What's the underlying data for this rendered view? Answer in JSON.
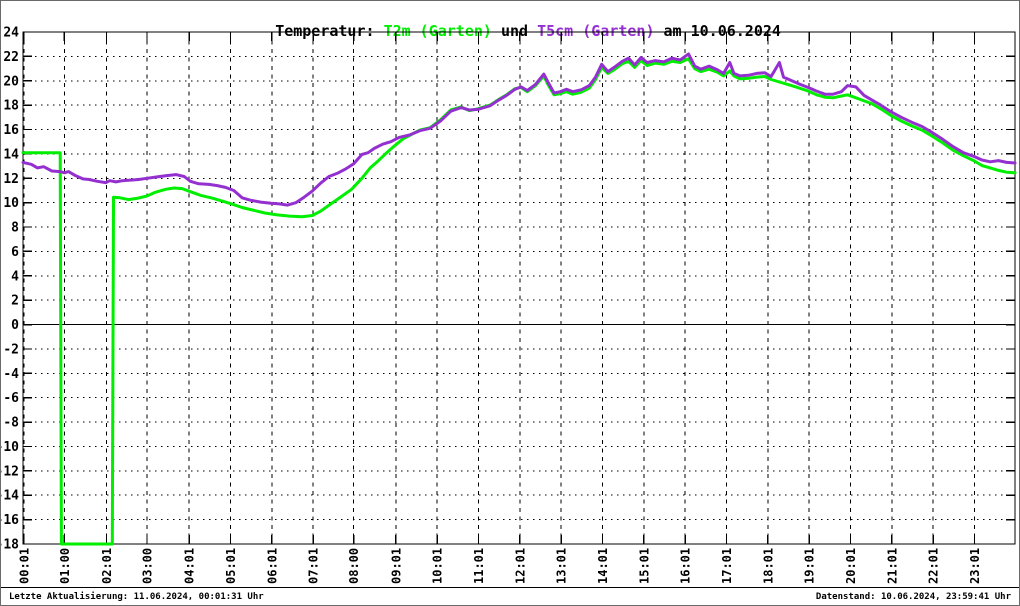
{
  "title": {
    "prefix": "Temperatur: ",
    "series1_label": "T2m (Garten)",
    "conjunction": " und ",
    "series2_label": "T5cm (Garten)",
    "suffix": " am 10.06.2024"
  },
  "footer": {
    "last_update": "Letzte Aktualisierung: 11.06.2024, 00:01:31 Uhr",
    "data_state": "Datenstand: 10.06.2024, 23:59:41 Uhr"
  },
  "chart_data": {
    "type": "line",
    "title": "Temperatur: T2m (Garten) und T5cm (Garten) am 10.06.2024",
    "xlabel": "",
    "ylabel": "",
    "x_unit": "hours_of_day",
    "ylim": [
      -18,
      24
    ],
    "grid": "dotted",
    "zero_line": true,
    "legend_position": "none",
    "y_ticks": [
      24,
      22,
      20,
      18,
      16,
      14,
      12,
      10,
      8,
      6,
      4,
      2,
      0,
      -2,
      -4,
      -6,
      -8,
      -10,
      -12,
      -14,
      -16,
      -18
    ],
    "x_ticks": [
      {
        "t": 0.02,
        "label": "00:01"
      },
      {
        "t": 1.0,
        "label": "01:00"
      },
      {
        "t": 2.02,
        "label": "02:01"
      },
      {
        "t": 3.0,
        "label": "03:00"
      },
      {
        "t": 4.02,
        "label": "04:01"
      },
      {
        "t": 5.02,
        "label": "05:01"
      },
      {
        "t": 6.02,
        "label": "06:01"
      },
      {
        "t": 7.02,
        "label": "07:01"
      },
      {
        "t": 8.0,
        "label": "08:00"
      },
      {
        "t": 9.02,
        "label": "09:01"
      },
      {
        "t": 10.02,
        "label": "10:01"
      },
      {
        "t": 11.02,
        "label": "11:01"
      },
      {
        "t": 12.02,
        "label": "12:01"
      },
      {
        "t": 13.02,
        "label": "13:01"
      },
      {
        "t": 14.02,
        "label": "14:01"
      },
      {
        "t": 15.02,
        "label": "15:01"
      },
      {
        "t": 16.02,
        "label": "16:01"
      },
      {
        "t": 17.02,
        "label": "17:01"
      },
      {
        "t": 18.02,
        "label": "18:01"
      },
      {
        "t": 19.02,
        "label": "19:01"
      },
      {
        "t": 20.02,
        "label": "20:01"
      },
      {
        "t": 21.02,
        "label": "21:01"
      },
      {
        "t": 22.02,
        "label": "22:01"
      },
      {
        "t": 23.02,
        "label": "23:01"
      }
    ],
    "series": [
      {
        "name": "T2m (Garten)",
        "color": "#00ee00",
        "points": [
          [
            0,
            14.1
          ],
          [
            0.9,
            14.1
          ],
          [
            0.93,
            -18
          ],
          [
            2.16,
            -18
          ],
          [
            2.19,
            10.45
          ],
          [
            2.35,
            10.4
          ],
          [
            2.55,
            10.25
          ],
          [
            2.75,
            10.35
          ],
          [
            3.0,
            10.55
          ],
          [
            3.2,
            10.85
          ],
          [
            3.45,
            11.1
          ],
          [
            3.65,
            11.2
          ],
          [
            3.85,
            11.15
          ],
          [
            4.05,
            10.9
          ],
          [
            4.3,
            10.6
          ],
          [
            4.55,
            10.4
          ],
          [
            4.8,
            10.15
          ],
          [
            5.05,
            9.9
          ],
          [
            5.3,
            9.6
          ],
          [
            5.55,
            9.4
          ],
          [
            5.85,
            9.15
          ],
          [
            6.15,
            9.0
          ],
          [
            6.45,
            8.9
          ],
          [
            6.75,
            8.85
          ],
          [
            7.0,
            8.95
          ],
          [
            7.2,
            9.3
          ],
          [
            7.45,
            9.9
          ],
          [
            7.7,
            10.5
          ],
          [
            7.95,
            11.1
          ],
          [
            8.2,
            12.0
          ],
          [
            8.4,
            12.85
          ],
          [
            8.6,
            13.45
          ],
          [
            8.8,
            14.1
          ],
          [
            9.0,
            14.7
          ],
          [
            9.2,
            15.25
          ],
          [
            9.4,
            15.6
          ],
          [
            9.6,
            15.95
          ],
          [
            9.85,
            16.15
          ],
          [
            10.1,
            16.8
          ],
          [
            10.35,
            17.6
          ],
          [
            10.6,
            17.85
          ],
          [
            10.8,
            17.55
          ],
          [
            11.0,
            17.7
          ],
          [
            11.15,
            17.85
          ],
          [
            11.3,
            18.0
          ],
          [
            11.5,
            18.45
          ],
          [
            11.7,
            18.85
          ],
          [
            11.9,
            19.35
          ],
          [
            12.05,
            19.45
          ],
          [
            12.2,
            19.1
          ],
          [
            12.4,
            19.6
          ],
          [
            12.6,
            20.4
          ],
          [
            12.7,
            19.7
          ],
          [
            12.85,
            18.85
          ],
          [
            13.0,
            18.95
          ],
          [
            13.15,
            19.1
          ],
          [
            13.3,
            18.9
          ],
          [
            13.5,
            19.05
          ],
          [
            13.7,
            19.4
          ],
          [
            13.85,
            20.1
          ],
          [
            14.0,
            21.1
          ],
          [
            14.15,
            20.6
          ],
          [
            14.3,
            20.9
          ],
          [
            14.5,
            21.4
          ],
          [
            14.65,
            21.6
          ],
          [
            14.8,
            21.1
          ],
          [
            14.95,
            21.65
          ],
          [
            15.1,
            21.25
          ],
          [
            15.3,
            21.45
          ],
          [
            15.5,
            21.35
          ],
          [
            15.7,
            21.6
          ],
          [
            15.9,
            21.5
          ],
          [
            16.1,
            21.8
          ],
          [
            16.25,
            21.0
          ],
          [
            16.4,
            20.75
          ],
          [
            16.6,
            20.95
          ],
          [
            16.8,
            20.7
          ],
          [
            16.95,
            20.4
          ],
          [
            17.1,
            20.8
          ],
          [
            17.2,
            20.4
          ],
          [
            17.35,
            20.15
          ],
          [
            17.55,
            20.2
          ],
          [
            17.75,
            20.3
          ],
          [
            17.95,
            20.35
          ],
          [
            18.1,
            20.1
          ],
          [
            18.3,
            19.9
          ],
          [
            18.5,
            19.7
          ],
          [
            18.7,
            19.5
          ],
          [
            19.0,
            19.15
          ],
          [
            19.2,
            18.85
          ],
          [
            19.4,
            18.65
          ],
          [
            19.6,
            18.6
          ],
          [
            19.8,
            18.75
          ],
          [
            19.95,
            18.85
          ],
          [
            20.15,
            18.6
          ],
          [
            20.35,
            18.35
          ],
          [
            20.55,
            18.1
          ],
          [
            20.75,
            17.7
          ],
          [
            21.0,
            17.15
          ],
          [
            21.25,
            16.7
          ],
          [
            21.5,
            16.3
          ],
          [
            21.75,
            15.95
          ],
          [
            22.0,
            15.45
          ],
          [
            22.25,
            14.9
          ],
          [
            22.5,
            14.3
          ],
          [
            22.75,
            13.85
          ],
          [
            23.0,
            13.45
          ],
          [
            23.2,
            13.05
          ],
          [
            23.4,
            12.85
          ],
          [
            23.6,
            12.65
          ],
          [
            23.8,
            12.5
          ],
          [
            24.0,
            12.45
          ]
        ]
      },
      {
        "name": "T5cm (Garten)",
        "color": "#9430d0",
        "points": [
          [
            0,
            13.3
          ],
          [
            0.2,
            13.15
          ],
          [
            0.35,
            12.85
          ],
          [
            0.5,
            12.95
          ],
          [
            0.7,
            12.6
          ],
          [
            0.9,
            12.55
          ],
          [
            1.0,
            12.45
          ],
          [
            1.1,
            12.55
          ],
          [
            1.25,
            12.25
          ],
          [
            1.45,
            11.95
          ],
          [
            1.6,
            11.9
          ],
          [
            1.8,
            11.75
          ],
          [
            2.0,
            11.65
          ],
          [
            2.1,
            11.8
          ],
          [
            2.25,
            11.7
          ],
          [
            2.4,
            11.8
          ],
          [
            2.6,
            11.85
          ],
          [
            2.8,
            11.9
          ],
          [
            3.0,
            12.0
          ],
          [
            3.2,
            12.1
          ],
          [
            3.45,
            12.2
          ],
          [
            3.7,
            12.3
          ],
          [
            3.9,
            12.15
          ],
          [
            4.05,
            11.75
          ],
          [
            4.25,
            11.55
          ],
          [
            4.5,
            11.5
          ],
          [
            4.7,
            11.4
          ],
          [
            4.9,
            11.25
          ],
          [
            5.1,
            11.0
          ],
          [
            5.3,
            10.4
          ],
          [
            5.5,
            10.2
          ],
          [
            5.75,
            10.05
          ],
          [
            6.0,
            9.95
          ],
          [
            6.2,
            9.9
          ],
          [
            6.4,
            9.8
          ],
          [
            6.6,
            10.0
          ],
          [
            6.8,
            10.45
          ],
          [
            7.0,
            10.95
          ],
          [
            7.2,
            11.6
          ],
          [
            7.4,
            12.15
          ],
          [
            7.6,
            12.4
          ],
          [
            7.8,
            12.75
          ],
          [
            8.0,
            13.2
          ],
          [
            8.2,
            13.95
          ],
          [
            8.35,
            14.1
          ],
          [
            8.5,
            14.45
          ],
          [
            8.7,
            14.8
          ],
          [
            8.9,
            15.0
          ],
          [
            9.1,
            15.35
          ],
          [
            9.35,
            15.55
          ],
          [
            9.6,
            15.9
          ],
          [
            9.85,
            16.1
          ],
          [
            10.1,
            16.7
          ],
          [
            10.35,
            17.5
          ],
          [
            10.6,
            17.8
          ],
          [
            10.8,
            17.6
          ],
          [
            11.0,
            17.65
          ],
          [
            11.15,
            17.8
          ],
          [
            11.3,
            17.95
          ],
          [
            11.5,
            18.4
          ],
          [
            11.7,
            18.8
          ],
          [
            11.9,
            19.3
          ],
          [
            12.05,
            19.5
          ],
          [
            12.2,
            19.2
          ],
          [
            12.4,
            19.7
          ],
          [
            12.6,
            20.55
          ],
          [
            12.7,
            19.9
          ],
          [
            12.85,
            19.0
          ],
          [
            13.0,
            19.1
          ],
          [
            13.15,
            19.3
          ],
          [
            13.3,
            19.1
          ],
          [
            13.5,
            19.25
          ],
          [
            13.7,
            19.6
          ],
          [
            13.85,
            20.3
          ],
          [
            14.0,
            21.35
          ],
          [
            14.15,
            20.75
          ],
          [
            14.3,
            21.1
          ],
          [
            14.5,
            21.6
          ],
          [
            14.65,
            21.85
          ],
          [
            14.8,
            21.3
          ],
          [
            14.95,
            21.9
          ],
          [
            15.1,
            21.5
          ],
          [
            15.3,
            21.65
          ],
          [
            15.5,
            21.55
          ],
          [
            15.7,
            21.85
          ],
          [
            15.9,
            21.7
          ],
          [
            16.1,
            22.2
          ],
          [
            16.25,
            21.2
          ],
          [
            16.4,
            20.95
          ],
          [
            16.6,
            21.2
          ],
          [
            16.8,
            20.9
          ],
          [
            16.95,
            20.6
          ],
          [
            17.1,
            21.5
          ],
          [
            17.2,
            20.6
          ],
          [
            17.35,
            20.4
          ],
          [
            17.55,
            20.45
          ],
          [
            17.75,
            20.6
          ],
          [
            17.95,
            20.65
          ],
          [
            18.1,
            20.35
          ],
          [
            18.3,
            21.5
          ],
          [
            18.4,
            20.3
          ],
          [
            18.6,
            20.0
          ],
          [
            18.8,
            19.7
          ],
          [
            19.0,
            19.45
          ],
          [
            19.2,
            19.15
          ],
          [
            19.4,
            18.9
          ],
          [
            19.6,
            18.9
          ],
          [
            19.8,
            19.1
          ],
          [
            19.95,
            19.6
          ],
          [
            20.15,
            19.5
          ],
          [
            20.35,
            18.8
          ],
          [
            20.55,
            18.4
          ],
          [
            20.75,
            18.0
          ],
          [
            21.0,
            17.45
          ],
          [
            21.25,
            17.0
          ],
          [
            21.5,
            16.6
          ],
          [
            21.75,
            16.25
          ],
          [
            22.0,
            15.75
          ],
          [
            22.25,
            15.2
          ],
          [
            22.5,
            14.6
          ],
          [
            22.75,
            14.1
          ],
          [
            23.0,
            13.8
          ],
          [
            23.2,
            13.5
          ],
          [
            23.4,
            13.35
          ],
          [
            23.6,
            13.45
          ],
          [
            23.8,
            13.3
          ],
          [
            24.0,
            13.25
          ]
        ]
      }
    ]
  }
}
